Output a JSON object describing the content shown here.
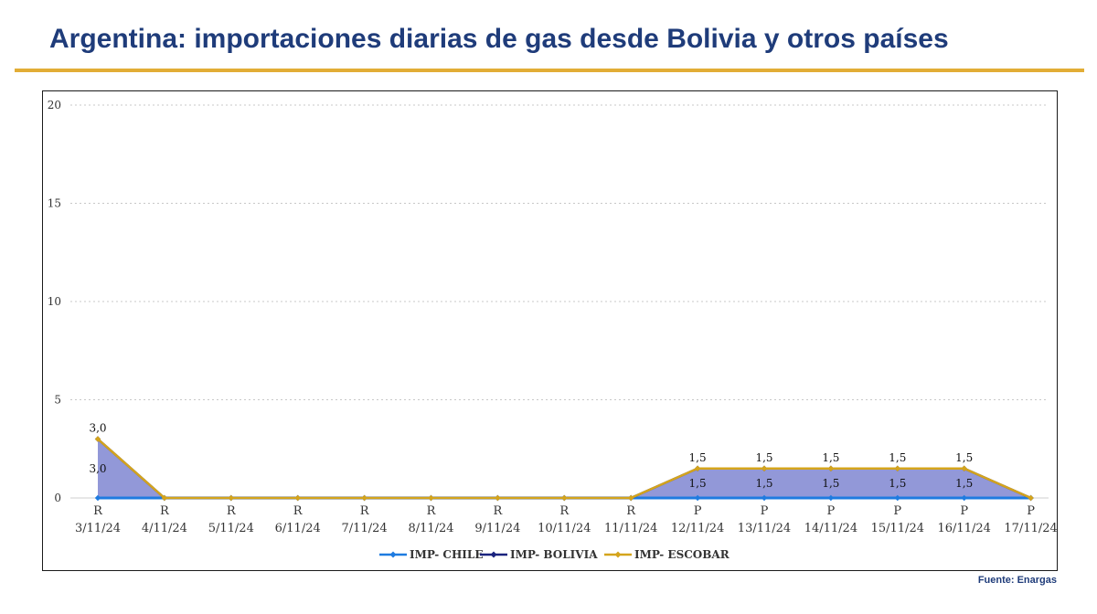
{
  "header": {
    "title": "Argentina: importaciones diarias de gas desde Bolivia y otros países"
  },
  "source": "Fuente: Enargas",
  "chart_data": {
    "type": "area",
    "x_categories": [
      "3/11/24",
      "4/11/24",
      "5/11/24",
      "6/11/24",
      "7/11/24",
      "8/11/24",
      "9/11/24",
      "10/11/24",
      "11/11/24",
      "12/11/24",
      "13/11/24",
      "14/11/24",
      "15/11/24",
      "16/11/24",
      "17/11/24"
    ],
    "status_labels": [
      "R",
      "R",
      "R",
      "R",
      "R",
      "R",
      "R",
      "R",
      "R",
      "P",
      "P",
      "P",
      "P",
      "P",
      "P"
    ],
    "yticks": [
      0,
      5,
      10,
      15,
      20
    ],
    "ylim": [
      0,
      20
    ],
    "grid": true,
    "legend_position": "bottom",
    "series": [
      {
        "name": "IMP- CHILE",
        "color": "#1e7be0",
        "values": [
          0,
          0,
          0,
          0,
          0,
          0,
          0,
          0,
          0,
          0,
          0,
          0,
          0,
          0,
          0
        ]
      },
      {
        "name": "IMP- BOLIVIA",
        "color": "#1a237e",
        "values": [
          3.0,
          0,
          0,
          0,
          0,
          0,
          0,
          0,
          0,
          1.5,
          1.5,
          1.5,
          1.5,
          1.5,
          0
        ]
      },
      {
        "name": "IMP- ESCOBAR",
        "color": "#d4a41c",
        "values": [
          3.0,
          0,
          0,
          0,
          0,
          0,
          0,
          0,
          0,
          1.5,
          1.5,
          1.5,
          1.5,
          1.5,
          0
        ]
      }
    ],
    "area_fill": "#8c92d6",
    "data_labels": {
      "bolivia": [
        "3,0",
        "",
        "",
        "",
        "",
        "",
        "",
        "",
        "",
        "1,5",
        "1,5",
        "1,5",
        "1,5",
        "1,5",
        ""
      ],
      "escobar": [
        "3,0",
        "",
        "",
        "",
        "",
        "",
        "",
        "",
        "",
        "1,5",
        "1,5",
        "1,5",
        "1,5",
        "1,5",
        ""
      ]
    }
  }
}
